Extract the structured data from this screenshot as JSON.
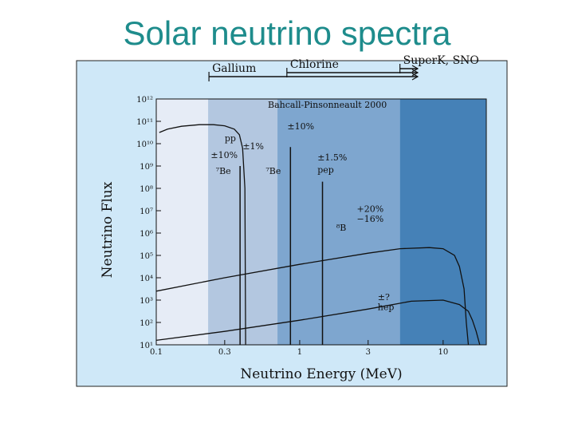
{
  "slide": {
    "title": "Solar neutrino spectra"
  },
  "chart_data": {
    "type": "line",
    "title": "Bahcall-Pinsonneault 2000",
    "xlabel": "Neutrino Energy (MeV)",
    "ylabel": "Neutrino Flux",
    "xscale": "log",
    "yscale": "log",
    "xlim": [
      0.1,
      20
    ],
    "ylim_exp": [
      1,
      12
    ],
    "x_ticks": [
      {
        "v": 0.1,
        "label": "0.1"
      },
      {
        "v": 0.3,
        "label": "0.3"
      },
      {
        "v": 1,
        "label": "1"
      },
      {
        "v": 3,
        "label": "3"
      },
      {
        "v": 10,
        "label": "10"
      }
    ],
    "y_ticks": [
      {
        "e": 12,
        "label": "10¹²"
      },
      {
        "e": 11,
        "label": "10¹¹"
      },
      {
        "e": 10,
        "label": "10¹⁰"
      },
      {
        "e": 9,
        "label": "10⁹"
      },
      {
        "e": 8,
        "label": "10⁸"
      },
      {
        "e": 7,
        "label": "10⁷"
      },
      {
        "e": 6,
        "label": "10⁶"
      },
      {
        "e": 5,
        "label": "10⁵"
      },
      {
        "e": 4,
        "label": "10⁴"
      },
      {
        "e": 3,
        "label": "10³"
      },
      {
        "e": 2,
        "label": "10²"
      },
      {
        "e": 1,
        "label": "10¹"
      }
    ],
    "regions": [
      {
        "x_from": 0.1,
        "x_to": 0.23,
        "color": "#e6ecf6"
      },
      {
        "x_from": 0.23,
        "x_to": 0.7,
        "color": "#b3c7e0"
      },
      {
        "x_from": 0.7,
        "x_to": 5.0,
        "color": "#7ea6cf"
      },
      {
        "x_from": 5.0,
        "x_to": 20,
        "color": "#4581b7"
      }
    ],
    "detectors": [
      {
        "name": "Gallium",
        "threshold": 0.233
      },
      {
        "name": "Chlorine",
        "threshold": 0.814
      },
      {
        "name": "SuperK, SNO",
        "threshold": 5.0
      }
    ],
    "series": [
      {
        "name": "pp",
        "uncertainty": "±1%",
        "x": [
          0.105,
          0.12,
          0.15,
          0.2,
          0.25,
          0.3,
          0.35,
          0.38,
          0.4,
          0.415,
          0.42
        ],
        "y_exp": [
          10.5,
          10.65,
          10.78,
          10.85,
          10.85,
          10.8,
          10.65,
          10.4,
          9.8,
          8.0,
          1.0
        ]
      },
      {
        "name": "8B",
        "uncertainty": "+20%\n−16%",
        "x": [
          0.1,
          0.3,
          1,
          3,
          5,
          8,
          10,
          12,
          13,
          14,
          14.5,
          15
        ],
        "y_exp": [
          3.4,
          4.0,
          4.6,
          5.1,
          5.3,
          5.35,
          5.3,
          5.0,
          4.5,
          3.5,
          2.0,
          1.0
        ]
      },
      {
        "name": "hep",
        "uncertainty": "±?",
        "x": [
          0.1,
          0.3,
          1,
          3,
          6,
          10,
          13,
          15,
          16,
          17,
          18
        ],
        "y_exp": [
          1.2,
          1.6,
          2.1,
          2.6,
          2.95,
          3.0,
          2.8,
          2.5,
          2.1,
          1.6,
          1.0
        ]
      }
    ],
    "lines": [
      {
        "name": "7Be",
        "label": "⁷Be",
        "uncertainty": "±10%",
        "x": 0.384,
        "y_top_exp": 9.0
      },
      {
        "name": "7Be",
        "label": "⁷Be",
        "uncertainty": "",
        "x": 0.862,
        "y_top_exp": 9.85
      },
      {
        "name": "pep",
        "label": "pep",
        "uncertainty": "±1.5%",
        "x": 1.442,
        "y_top_exp": 8.3
      }
    ],
    "annotations": [
      {
        "text": "pp",
        "x": 0.3,
        "y_exp": 10.1
      },
      {
        "text": "±1%",
        "x": 0.4,
        "y_exp": 9.75
      },
      {
        "text": "±10%",
        "x": 0.82,
        "y_exp": 10.65
      },
      {
        "text": "±10%",
        "x": 0.24,
        "y_exp": 9.35
      },
      {
        "text": "⁷Be",
        "x": 0.26,
        "y_exp": 8.65
      },
      {
        "text": "⁷Be",
        "x": 0.58,
        "y_exp": 8.65
      },
      {
        "text": "±1.5%",
        "x": 1.33,
        "y_exp": 9.25
      },
      {
        "text": "pep",
        "x": 1.33,
        "y_exp": 8.7
      },
      {
        "text": "+20%",
        "x": 2.5,
        "y_exp": 6.95
      },
      {
        "text": "−16%",
        "x": 2.5,
        "y_exp": 6.5
      },
      {
        "text": "⁸B",
        "x": 1.8,
        "y_exp": 6.1
      },
      {
        "text": "±?",
        "x": 3.5,
        "y_exp": 3.0
      },
      {
        "text": "hep",
        "x": 3.5,
        "y_exp": 2.55
      }
    ]
  }
}
